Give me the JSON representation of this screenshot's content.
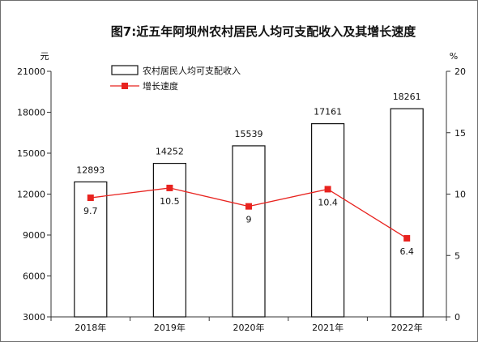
{
  "chart_data": {
    "type": "bar",
    "title": "图7:近五年阿坝州农村居民人均可支配收入及其增长速度",
    "categories": [
      "2018年",
      "2019年",
      "2020年",
      "2021年",
      "2022年"
    ],
    "y_left": {
      "unit": "元",
      "ylim": [
        3000,
        21000
      ],
      "ticks": [
        "3000",
        "6000",
        "9000",
        "12000",
        "15000",
        "18000",
        "21000"
      ]
    },
    "y_right": {
      "unit": "%",
      "ylim": [
        0,
        20
      ],
      "ticks": [
        "0",
        "5",
        "10",
        "15",
        "20"
      ]
    },
    "series": [
      {
        "name": "农村居民人均可支配收入",
        "kind": "bar",
        "axis": "left",
        "values": [
          12893,
          14252,
          15539,
          17161,
          18261
        ],
        "labels": [
          "12893",
          "14252",
          "15539",
          "17161",
          "18261"
        ],
        "color": "#ffffff"
      },
      {
        "name": "增长速度",
        "kind": "line",
        "axis": "right",
        "values": [
          9.7,
          10.5,
          9,
          10.4,
          6.4
        ],
        "labels": [
          "9.7",
          "10.5",
          "9",
          "10.4",
          "6.4"
        ],
        "color": "#e8231f"
      }
    ],
    "legend_position": "top-left",
    "grid": false
  }
}
